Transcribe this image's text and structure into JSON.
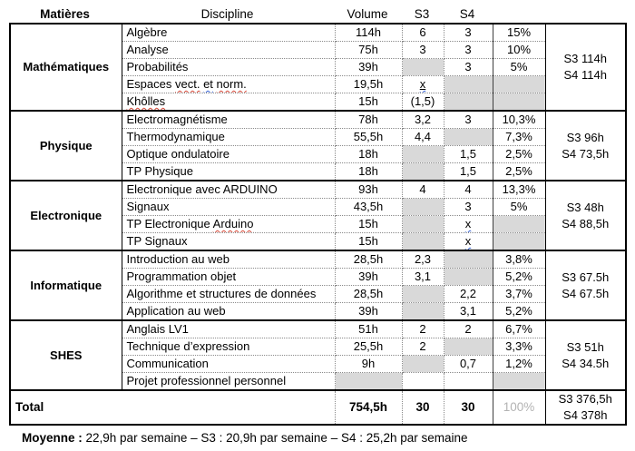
{
  "header": {
    "matieres": "Matières",
    "discipline": "Discipline",
    "volume": "Volume",
    "s3": "S3",
    "s4": "S4"
  },
  "colors": {
    "gray_fill": "#d9d9d9",
    "muted_total_pct": "#b3b3b3",
    "spellcheck_red": "#d84a3a",
    "grammar_blue": "#3a66d8"
  },
  "groups": [
    {
      "name": "Mathématiques",
      "summary": [
        "S3 114h",
        "S4 114h"
      ],
      "rows": [
        {
          "discipline": {
            "text": "Algèbre"
          },
          "volume": {
            "text": "114h"
          },
          "s3": {
            "text": "6"
          },
          "s4": {
            "text": "3"
          },
          "pct": {
            "text": "15%"
          }
        },
        {
          "discipline": {
            "text": "Analyse"
          },
          "volume": {
            "text": "75h"
          },
          "s3": {
            "text": "3"
          },
          "s4": {
            "text": "3"
          },
          "pct": {
            "text": "10%"
          }
        },
        {
          "discipline": {
            "text": "Probabilités"
          },
          "volume": {
            "text": "39h"
          },
          "s3": {
            "text": "",
            "gray": true
          },
          "s4": {
            "text": "3"
          },
          "pct": {
            "text": "5%"
          }
        },
        {
          "discipline": {
            "parts": [
              {
                "text": "Espaces "
              },
              {
                "text": "vect.",
                "squiggle": "red"
              },
              {
                "text": " "
              },
              {
                "text": "et",
                "squiggle": "blue"
              },
              {
                "text": " "
              },
              {
                "text": "norm.",
                "squiggle": "red"
              }
            ]
          },
          "volume": {
            "text": "19,5h"
          },
          "s3": {
            "text": "x",
            "underline": true,
            "squiggle": "blue"
          },
          "s4": {
            "text": "",
            "gray": true
          },
          "pct": {
            "text": "",
            "gray": true
          }
        },
        {
          "discipline": {
            "parts": [
              {
                "text": "Khôlles",
                "squiggle": "red"
              }
            ]
          },
          "volume": {
            "text": "15h"
          },
          "s3": {
            "text": "(1,5)"
          },
          "s4": {
            "text": "",
            "gray": true
          },
          "pct": {
            "text": "",
            "gray": true
          }
        }
      ]
    },
    {
      "name": "Physique",
      "summary": [
        "S3 96h",
        "S4 73,5h"
      ],
      "rows": [
        {
          "discipline": {
            "text": "Electromagnétisme"
          },
          "volume": {
            "text": "78h"
          },
          "s3": {
            "text": "3,2"
          },
          "s4": {
            "text": "3"
          },
          "pct": {
            "text": "10,3%"
          }
        },
        {
          "discipline": {
            "text": "Thermodynamique"
          },
          "volume": {
            "text": "55,5h"
          },
          "s3": {
            "text": "4,4"
          },
          "s4": {
            "text": "",
            "gray": true
          },
          "pct": {
            "text": "7,3%"
          }
        },
        {
          "discipline": {
            "text": "Optique ondulatoire"
          },
          "volume": {
            "text": "18h"
          },
          "s3": {
            "text": "",
            "gray": true
          },
          "s4": {
            "text": "1,5"
          },
          "pct": {
            "text": "2,5%"
          }
        },
        {
          "discipline": {
            "text": "TP Physique"
          },
          "volume": {
            "text": "18h"
          },
          "s3": {
            "text": "",
            "gray": true
          },
          "s4": {
            "text": "1,5"
          },
          "pct": {
            "text": "2,5%"
          }
        }
      ]
    },
    {
      "name": "Electronique",
      "summary": [
        "S3 48h",
        "S4 88,5h"
      ],
      "rows": [
        {
          "discipline": {
            "text": "Electronique avec ARDUINO"
          },
          "volume": {
            "text": "93h"
          },
          "s3": {
            "text": "4"
          },
          "s4": {
            "text": "4"
          },
          "pct": {
            "text": "13,3%"
          }
        },
        {
          "discipline": {
            "text": "Signaux"
          },
          "volume": {
            "text": "43,5h"
          },
          "s3": {
            "text": "",
            "gray": true
          },
          "s4": {
            "text": "3"
          },
          "pct": {
            "text": "5%"
          }
        },
        {
          "discipline": {
            "parts": [
              {
                "text": "TP Electronique "
              },
              {
                "text": "Arduino",
                "squiggle": "red"
              }
            ]
          },
          "volume": {
            "text": "15h"
          },
          "s3": {
            "text": "",
            "gray": true
          },
          "s4": {
            "text": "x",
            "squiggle": "blue"
          },
          "pct": {
            "text": "",
            "gray": true
          }
        },
        {
          "discipline": {
            "text": "TP Signaux"
          },
          "volume": {
            "text": "15h"
          },
          "s3": {
            "text": "",
            "gray": true
          },
          "s4": {
            "text": "x",
            "squiggle": "blue"
          },
          "pct": {
            "text": "",
            "gray": true
          }
        }
      ]
    },
    {
      "name": "Informatique",
      "summary": [
        "S3 67.5h",
        "S4 67.5h"
      ],
      "rows": [
        {
          "discipline": {
            "text": "Introduction au web"
          },
          "volume": {
            "text": "28,5h"
          },
          "s3": {
            "text": "2,3"
          },
          "s4": {
            "text": "",
            "gray": true
          },
          "pct": {
            "text": "3,8%"
          }
        },
        {
          "discipline": {
            "text": "Programmation objet"
          },
          "volume": {
            "text": "39h"
          },
          "s3": {
            "text": "3,1"
          },
          "s4": {
            "text": "",
            "gray": true
          },
          "pct": {
            "text": "5,2%"
          }
        },
        {
          "discipline": {
            "text": "Algorithme et structures de données"
          },
          "volume": {
            "text": "28,5h"
          },
          "s3": {
            "text": "",
            "gray": true
          },
          "s4": {
            "text": "2,2"
          },
          "pct": {
            "text": "3,7%"
          }
        },
        {
          "discipline": {
            "text": "Application au web"
          },
          "volume": {
            "text": "39h"
          },
          "s3": {
            "text": "",
            "gray": true
          },
          "s4": {
            "text": "3,1"
          },
          "pct": {
            "text": "5,2%"
          }
        }
      ]
    },
    {
      "name": "SHES",
      "summary": [
        "S3 51h",
        "S4 34.5h"
      ],
      "rows": [
        {
          "discipline": {
            "text": "Anglais LV1"
          },
          "volume": {
            "text": "51h"
          },
          "s3": {
            "text": "2"
          },
          "s4": {
            "text": "2"
          },
          "pct": {
            "text": "6,7%"
          }
        },
        {
          "discipline": {
            "text": "Technique d’expression"
          },
          "volume": {
            "text": "25,5h"
          },
          "s3": {
            "text": "2"
          },
          "s4": {
            "text": "",
            "gray": true
          },
          "pct": {
            "text": "3,3%"
          }
        },
        {
          "discipline": {
            "text": "Communication"
          },
          "volume": {
            "text": "9h"
          },
          "s3": {
            "text": "",
            "gray": true
          },
          "s4": {
            "text": "0,7"
          },
          "pct": {
            "text": "1,2%"
          }
        },
        {
          "discipline": {
            "text": "Projet professionnel personnel"
          },
          "volume": {
            "text": "",
            "gray": true
          },
          "s3": {
            "text": ""
          },
          "s4": {
            "text": ""
          },
          "pct": {
            "text": "",
            "gray": true
          }
        }
      ]
    }
  ],
  "total": {
    "label": "Total",
    "volume": "754,5h",
    "s3": "30",
    "s4": "30",
    "pct": "100%",
    "summary": [
      "S3 376,5h",
      "S4 378h"
    ]
  },
  "footer": {
    "bold": "Moyenne :",
    "rest": " 22,9h par semaine – S3 : 20,9h par semaine – S4 : 25,2h par semaine"
  }
}
